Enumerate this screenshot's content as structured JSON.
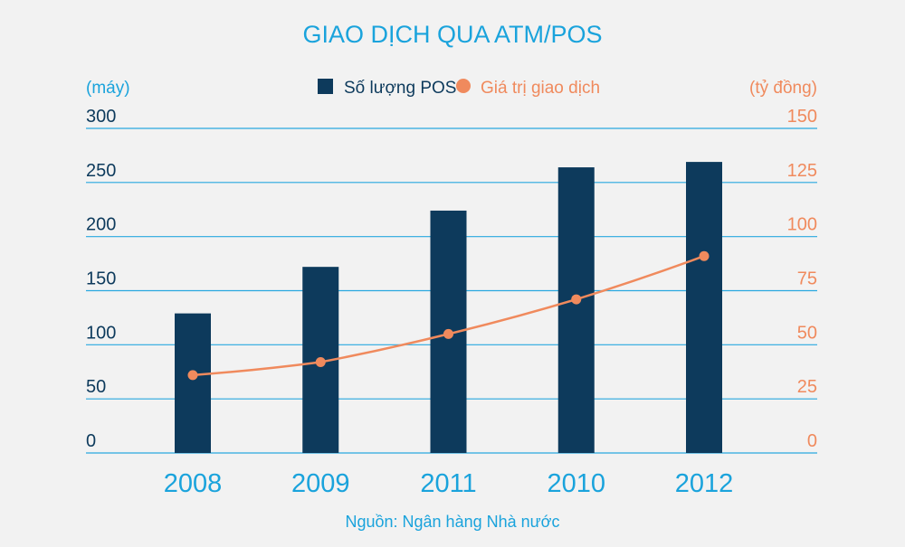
{
  "chart_data": {
    "type": "bar",
    "title": "GIAO DỊCH QUA ATM/POS",
    "source": "Nguồn: Ngân hàng Nhà nước",
    "categories": [
      "2008",
      "2009",
      "2011",
      "2010",
      "2012"
    ],
    "series": [
      {
        "name": "Số lượng POS",
        "type": "bar",
        "axis": "left",
        "values": [
          129,
          172,
          224,
          264,
          269
        ]
      },
      {
        "name": "Giá trị giao dịch",
        "type": "line",
        "axis": "right",
        "values": [
          36,
          42,
          55,
          71,
          91
        ]
      }
    ],
    "left_axis": {
      "unit": "(máy)",
      "ylim": [
        0,
        300
      ],
      "ticks": [
        "0",
        "50",
        "100",
        "150",
        "200",
        "250",
        "300"
      ]
    },
    "right_axis": {
      "unit": "(tỷ đồng)",
      "ylim": [
        0,
        150
      ],
      "ticks": [
        "0",
        "25",
        "50",
        "75",
        "100",
        "125",
        "150"
      ]
    },
    "grid": true,
    "legend_position": "top-center",
    "colors": {
      "bar": "#0d3a5c",
      "line": "#f08a5d",
      "grid": "#29a8df",
      "accent": "#1aa3dc"
    }
  }
}
